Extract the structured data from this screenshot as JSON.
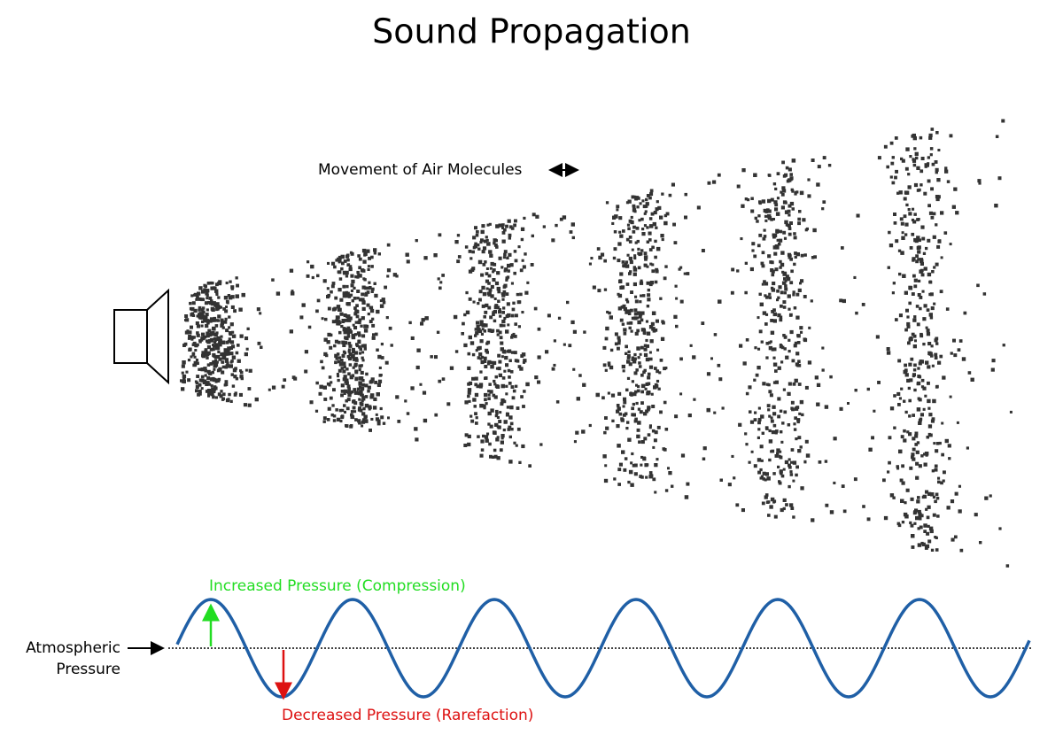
{
  "title": "Sound Propagation",
  "labels": {
    "movement": "Movement of Air Molecules",
    "compression": "Increased Pressure (Compression)",
    "rarefaction": "Decreased Pressure (Rarefaction)",
    "atmospheric": [
      "Atmospheric",
      "Pressure"
    ]
  }
}
